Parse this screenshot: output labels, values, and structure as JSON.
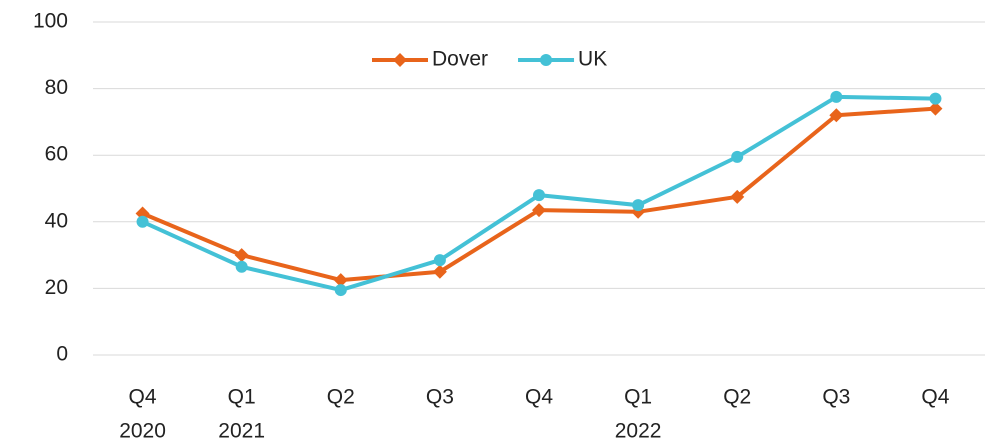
{
  "chart_data": {
    "type": "line",
    "categories": [
      "Q4",
      "Q1",
      "Q2",
      "Q3",
      "Q4",
      "Q1",
      "Q2",
      "Q3",
      "Q4"
    ],
    "years": [
      "2020",
      "2021",
      null,
      null,
      null,
      "2022",
      null,
      null,
      null
    ],
    "series": [
      {
        "name": "Dover",
        "color": "#e8641b",
        "marker": "diamond",
        "values": [
          42.5,
          30,
          22.5,
          25,
          43.5,
          43,
          47.5,
          72,
          74
        ]
      },
      {
        "name": "UK",
        "color": "#44c1d6",
        "marker": "circle",
        "values": [
          40,
          26.5,
          19.5,
          28.5,
          48,
          45,
          59.5,
          77.5,
          77
        ]
      }
    ],
    "ylim": [
      0,
      100
    ],
    "yticks": [
      0,
      20,
      40,
      60,
      80,
      100
    ],
    "grid": true,
    "legend": "top"
  }
}
